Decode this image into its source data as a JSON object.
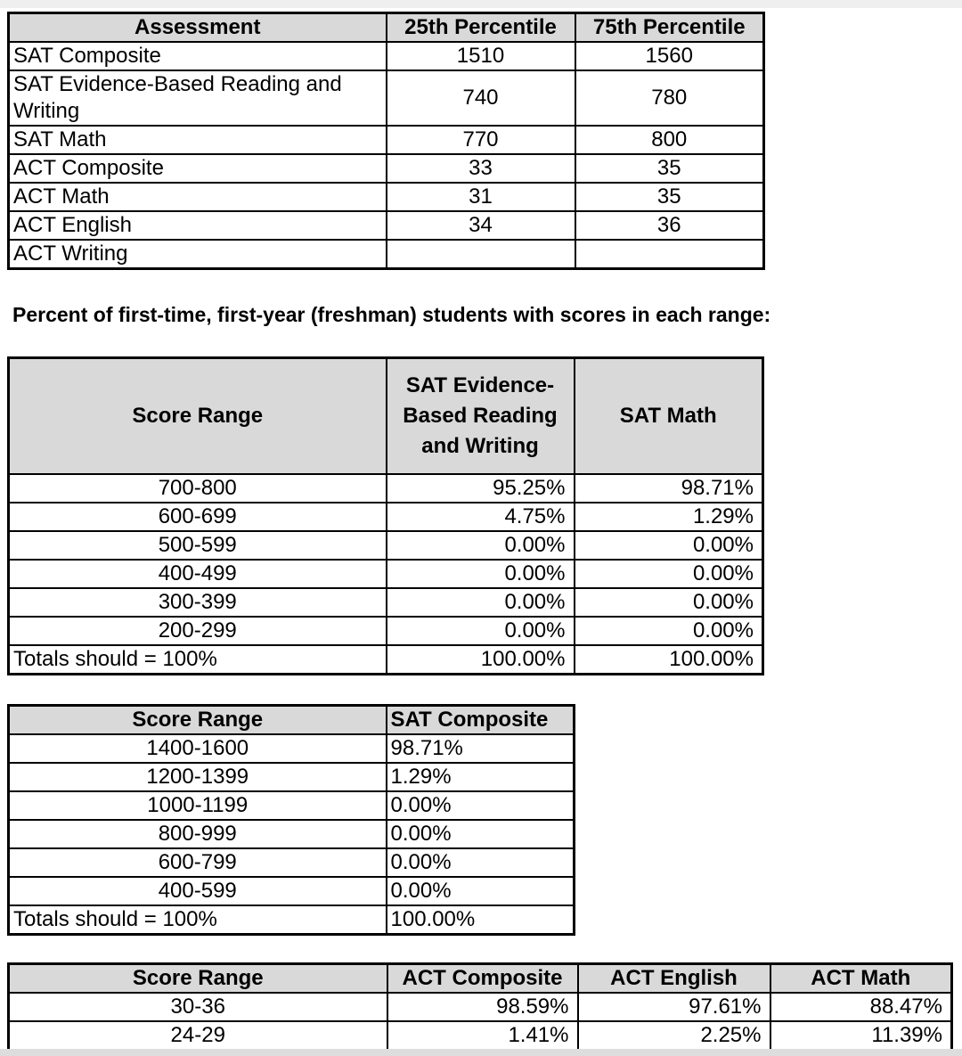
{
  "page": {
    "heading": "Percent of first-time, first-year (freshman) students with scores in each range:"
  },
  "percentile_table": {
    "headers": [
      "Assessment",
      "25th Percentile",
      "75th Percentile"
    ],
    "rows": [
      [
        "SAT Composite",
        "1510",
        "1560"
      ],
      [
        "SAT Evidence-Based Reading and Writing",
        "740",
        "780"
      ],
      [
        "SAT Math",
        "770",
        "800"
      ],
      [
        "ACT Composite",
        "33",
        "35"
      ],
      [
        "ACT Math",
        "31",
        "35"
      ],
      [
        "ACT English",
        "34",
        "36"
      ],
      [
        "ACT Writing",
        "",
        ""
      ]
    ]
  },
  "sat_sections_table": {
    "headers": [
      "Score Range",
      "SAT Evidence-Based Reading and Writing",
      "SAT Math"
    ],
    "rows": [
      [
        "700-800",
        "95.25%",
        "98.71%"
      ],
      [
        "600-699",
        "4.75%",
        "1.29%"
      ],
      [
        "500-599",
        "0.00%",
        "0.00%"
      ],
      [
        "400-499",
        "0.00%",
        "0.00%"
      ],
      [
        "300-399",
        "0.00%",
        "0.00%"
      ],
      [
        "200-299",
        "0.00%",
        "0.00%"
      ],
      [
        "Totals should = 100%",
        "100.00%",
        "100.00%"
      ]
    ]
  },
  "sat_composite_table": {
    "headers": [
      "Score Range",
      "SAT Composite"
    ],
    "rows": [
      [
        "1400-1600",
        "98.71%"
      ],
      [
        "1200-1399",
        "1.29%"
      ],
      [
        "1000-1199",
        "0.00%"
      ],
      [
        "800-999",
        "0.00%"
      ],
      [
        "600-799",
        "0.00%"
      ],
      [
        "400-599",
        "0.00%"
      ],
      [
        "Totals should = 100%",
        "100.00%"
      ]
    ]
  },
  "act_table": {
    "headers": [
      "Score Range",
      "ACT Composite",
      "ACT English",
      "ACT Math"
    ],
    "rows": [
      [
        "30-36",
        "98.59%",
        "97.61%",
        "88.47%"
      ],
      [
        "24-29",
        "1.41%",
        "2.25%",
        "11.39%"
      ]
    ]
  }
}
